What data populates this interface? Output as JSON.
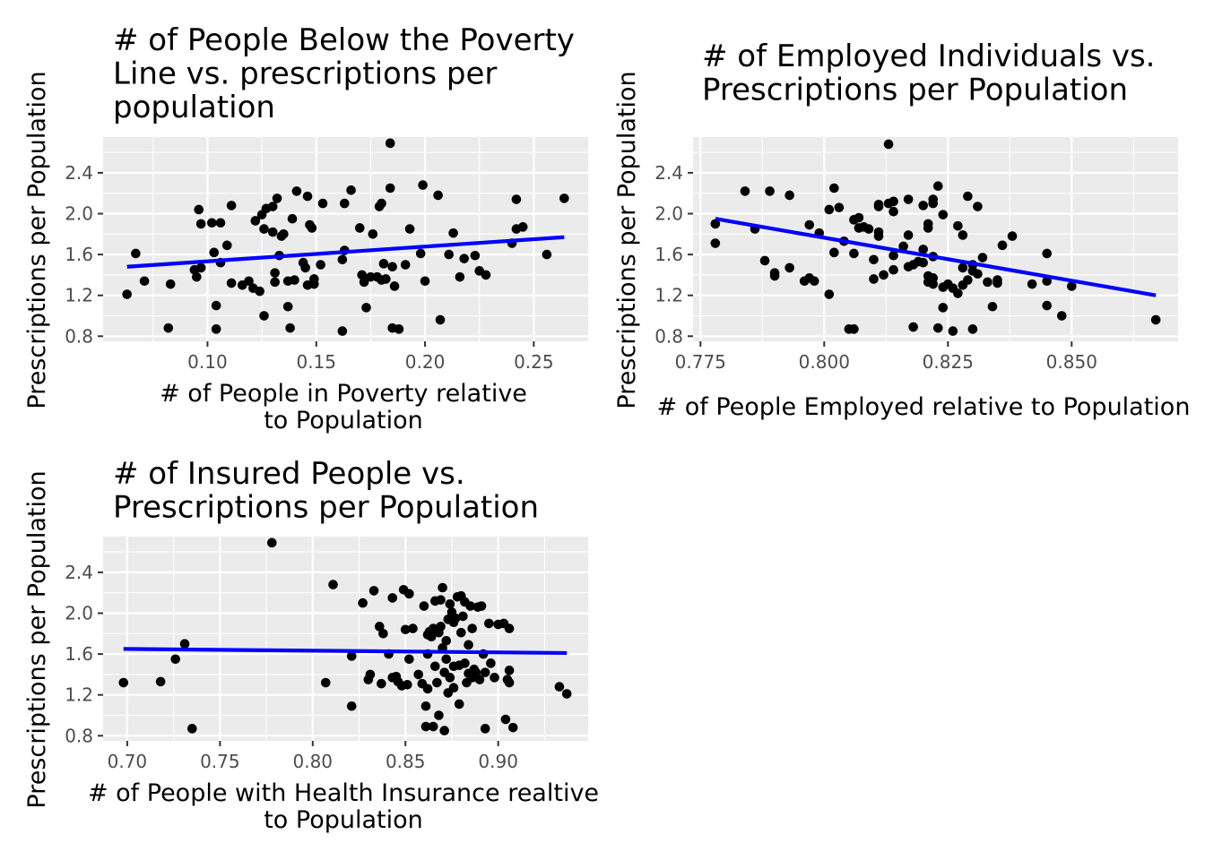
{
  "chart_data": [
    {
      "type": "scatter",
      "title": "# of People Below the Poverty Line vs. prescriptions per population",
      "title_lines": [
        "# of People Below the Poverty",
        "Line vs. prescriptions per",
        "population"
      ],
      "xlabel": "# of People in Poverty relative to Population",
      "xlabel_lines": [
        "# of People in Poverty relative",
        "to Population"
      ],
      "ylabel": "Prescriptions per Population",
      "xlim": [
        0.052,
        0.275
      ],
      "ylim": [
        0.75,
        2.75
      ],
      "xticks": [
        0.1,
        0.15,
        0.2,
        0.25
      ],
      "xtick_labels": [
        "0.10",
        "0.15",
        "0.20",
        "0.25"
      ],
      "yticks": [
        0.8,
        1.2,
        1.6,
        2.0,
        2.4
      ],
      "ytick_labels": [
        "0.8",
        "1.2",
        "1.6",
        "2.0",
        "2.4"
      ],
      "grid": true,
      "fit_line": {
        "x": [
          0.063,
          0.264
        ],
        "y": [
          1.48,
          1.77
        ],
        "color": "#0000FF"
      },
      "points": [
        [
          0.063,
          1.21
        ],
        [
          0.067,
          1.61
        ],
        [
          0.071,
          1.34
        ],
        [
          0.082,
          0.88
        ],
        [
          0.083,
          1.31
        ],
        [
          0.094,
          1.45
        ],
        [
          0.095,
          1.38
        ],
        [
          0.096,
          2.04
        ],
        [
          0.097,
          1.9
        ],
        [
          0.097,
          1.47
        ],
        [
          0.102,
          1.91
        ],
        [
          0.103,
          1.62
        ],
        [
          0.104,
          0.87
        ],
        [
          0.104,
          1.1
        ],
        [
          0.106,
          1.52
        ],
        [
          0.106,
          1.91
        ],
        [
          0.109,
          1.69
        ],
        [
          0.111,
          1.32
        ],
        [
          0.111,
          2.08
        ],
        [
          0.116,
          1.3
        ],
        [
          0.119,
          1.34
        ],
        [
          0.121,
          1.27
        ],
        [
          0.122,
          1.93
        ],
        [
          0.124,
          1.24
        ],
        [
          0.125,
          1.99
        ],
        [
          0.126,
          1.0
        ],
        [
          0.126,
          1.85
        ],
        [
          0.127,
          2.05
        ],
        [
          0.13,
          1.82
        ],
        [
          0.13,
          2.07
        ],
        [
          0.131,
          1.42
        ],
        [
          0.131,
          1.33
        ],
        [
          0.133,
          1.59
        ],
        [
          0.132,
          2.15
        ],
        [
          0.134,
          1.78
        ],
        [
          0.135,
          1.8
        ],
        [
          0.137,
          1.34
        ],
        [
          0.137,
          1.09
        ],
        [
          0.138,
          0.88
        ],
        [
          0.139,
          1.95
        ],
        [
          0.14,
          1.35
        ],
        [
          0.141,
          2.22
        ],
        [
          0.144,
          1.52
        ],
        [
          0.145,
          1.47
        ],
        [
          0.146,
          2.17
        ],
        [
          0.146,
          1.3
        ],
        [
          0.147,
          1.89
        ],
        [
          0.148,
          1.86
        ],
        [
          0.149,
          1.36
        ],
        [
          0.149,
          1.31
        ],
        [
          0.152,
          1.5
        ],
        [
          0.153,
          2.1
        ],
        [
          0.162,
          0.85
        ],
        [
          0.162,
          1.55
        ],
        [
          0.163,
          1.64
        ],
        [
          0.163,
          2.1
        ],
        [
          0.166,
          2.23
        ],
        [
          0.17,
          1.86
        ],
        [
          0.171,
          1.4
        ],
        [
          0.172,
          1.33
        ],
        [
          0.173,
          1.08
        ],
        [
          0.175,
          1.38
        ],
        [
          0.176,
          1.8
        ],
        [
          0.178,
          1.38
        ],
        [
          0.179,
          2.07
        ],
        [
          0.18,
          1.35
        ],
        [
          0.18,
          2.1
        ],
        [
          0.181,
          1.51
        ],
        [
          0.182,
          1.36
        ],
        [
          0.184,
          2.69
        ],
        [
          0.184,
          2.25
        ],
        [
          0.185,
          1.48
        ],
        [
          0.185,
          0.88
        ],
        [
          0.186,
          1.29
        ],
        [
          0.188,
          0.87
        ],
        [
          0.191,
          1.5
        ],
        [
          0.193,
          1.85
        ],
        [
          0.198,
          1.61
        ],
        [
          0.199,
          2.28
        ],
        [
          0.2,
          1.34
        ],
        [
          0.206,
          2.18
        ],
        [
          0.207,
          0.96
        ],
        [
          0.211,
          1.6
        ],
        [
          0.213,
          1.81
        ],
        [
          0.216,
          1.38
        ],
        [
          0.218,
          1.56
        ],
        [
          0.223,
          1.59
        ],
        [
          0.225,
          1.44
        ],
        [
          0.228,
          1.4
        ],
        [
          0.24,
          1.71
        ],
        [
          0.242,
          2.14
        ],
        [
          0.242,
          1.85
        ],
        [
          0.245,
          1.87
        ],
        [
          0.256,
          1.6
        ],
        [
          0.264,
          2.15
        ]
      ]
    },
    {
      "type": "scatter",
      "title": "# of Employed Individuals vs. Prescriptions per Population",
      "title_lines": [
        "# of Employed Individuals vs.",
        "Prescriptions per Population"
      ],
      "xlabel": "# of People Employed relative to Population",
      "xlabel_lines": [
        "# of People Employed relative to Population"
      ],
      "ylabel": "Prescriptions per Population",
      "xlim": [
        0.7735,
        0.8715
      ],
      "ylim": [
        0.75,
        2.75
      ],
      "xticks": [
        0.775,
        0.8,
        0.825,
        0.85
      ],
      "xtick_labels": [
        "0.775",
        "0.800",
        "0.825",
        "0.850"
      ],
      "yticks": [
        0.8,
        1.2,
        1.6,
        2.0,
        2.4
      ],
      "ytick_labels": [
        "0.8",
        "1.2",
        "1.6",
        "2.0",
        "2.4"
      ],
      "grid": true,
      "fit_line": {
        "x": [
          0.778,
          0.867
        ],
        "y": [
          1.95,
          1.2
        ],
        "color": "#0000FF"
      },
      "points": [
        [
          0.778,
          1.9
        ],
        [
          0.778,
          1.71
        ],
        [
          0.784,
          2.22
        ],
        [
          0.786,
          1.85
        ],
        [
          0.788,
          1.54
        ],
        [
          0.789,
          2.22
        ],
        [
          0.79,
          1.39
        ],
        [
          0.79,
          1.42
        ],
        [
          0.793,
          1.47
        ],
        [
          0.793,
          2.18
        ],
        [
          0.796,
          1.34
        ],
        [
          0.797,
          1.89
        ],
        [
          0.797,
          1.37
        ],
        [
          0.798,
          1.34
        ],
        [
          0.799,
          1.81
        ],
        [
          0.801,
          2.04
        ],
        [
          0.801,
          1.21
        ],
        [
          0.802,
          2.25
        ],
        [
          0.802,
          1.62
        ],
        [
          0.803,
          2.06
        ],
        [
          0.804,
          1.73
        ],
        [
          0.805,
          0.87
        ],
        [
          0.806,
          0.87
        ],
        [
          0.806,
          1.61
        ],
        [
          0.806,
          1.94
        ],
        [
          0.807,
          1.96
        ],
        [
          0.807,
          1.86
        ],
        [
          0.808,
          1.87
        ],
        [
          0.809,
          1.85
        ],
        [
          0.81,
          1.36
        ],
        [
          0.81,
          1.55
        ],
        [
          0.811,
          2.09
        ],
        [
          0.811,
          1.78
        ],
        [
          0.811,
          2.07
        ],
        [
          0.811,
          1.82
        ],
        [
          0.812,
          1.4
        ],
        [
          0.813,
          2.68
        ],
        [
          0.813,
          2.1
        ],
        [
          0.814,
          1.45
        ],
        [
          0.814,
          1.59
        ],
        [
          0.814,
          2.12
        ],
        [
          0.814,
          2.02
        ],
        [
          0.816,
          1.68
        ],
        [
          0.817,
          2.14
        ],
        [
          0.817,
          1.79
        ],
        [
          0.817,
          1.48
        ],
        [
          0.818,
          0.89
        ],
        [
          0.818,
          1.5
        ],
        [
          0.819,
          1.53
        ],
        [
          0.82,
          2.08
        ],
        [
          0.82,
          1.65
        ],
        [
          0.82,
          1.52
        ],
        [
          0.821,
          1.86
        ],
        [
          0.821,
          1.9
        ],
        [
          0.821,
          1.39
        ],
        [
          0.821,
          1.33
        ],
        [
          0.822,
          2.1
        ],
        [
          0.822,
          1.58
        ],
        [
          0.822,
          1.37
        ],
        [
          0.822,
          2.14
        ],
        [
          0.822,
          1.31
        ],
        [
          0.823,
          2.27
        ],
        [
          0.823,
          0.88
        ],
        [
          0.824,
          1.99
        ],
        [
          0.824,
          1.08
        ],
        [
          0.824,
          1.28
        ],
        [
          0.825,
          1.31
        ],
        [
          0.826,
          0.85
        ],
        [
          0.826,
          1.27
        ],
        [
          0.827,
          1.22
        ],
        [
          0.827,
          1.88
        ],
        [
          0.828,
          1.79
        ],
        [
          0.828,
          1.3
        ],
        [
          0.828,
          1.47
        ],
        [
          0.829,
          2.17
        ],
        [
          0.829,
          1.35
        ],
        [
          0.83,
          1.5
        ],
        [
          0.83,
          0.87
        ],
        [
          0.83,
          1.44
        ],
        [
          0.831,
          1.41
        ],
        [
          0.831,
          2.07
        ],
        [
          0.832,
          1.57
        ],
        [
          0.834,
          1.09
        ],
        [
          0.835,
          1.35
        ],
        [
          0.835,
          1.32
        ],
        [
          0.836,
          1.69
        ],
        [
          0.838,
          1.78
        ],
        [
          0.842,
          1.31
        ],
        [
          0.845,
          1.34
        ],
        [
          0.845,
          1.1
        ],
        [
          0.845,
          1.61
        ],
        [
          0.848,
          1.0
        ],
        [
          0.85,
          1.29
        ],
        [
          0.867,
          0.96
        ],
        [
          0.833,
          1.33
        ]
      ]
    },
    {
      "type": "scatter",
      "title": "# of Insured People vs. Prescriptions per Population",
      "title_lines": [
        "# of Insured People vs.",
        "Prescriptions per Population"
      ],
      "xlabel": "# of People with Health Insurance realtive to Population",
      "xlabel_lines": [
        "# of People with Health Insurance realtive",
        "to Population"
      ],
      "ylabel": "Prescriptions per Population",
      "xlim": [
        0.687,
        0.9485
      ],
      "ylim": [
        0.75,
        2.75
      ],
      "xticks": [
        0.7,
        0.75,
        0.8,
        0.85,
        0.9
      ],
      "xtick_labels": [
        "0.70",
        "0.75",
        "0.80",
        "0.85",
        "0.90"
      ],
      "yticks": [
        0.8,
        1.2,
        1.6,
        2.0,
        2.4
      ],
      "ytick_labels": [
        "0.8",
        "1.2",
        "1.6",
        "2.0",
        "2.4"
      ],
      "grid": true,
      "fit_line": {
        "x": [
          0.698,
          0.937
        ],
        "y": [
          1.65,
          1.61
        ],
        "color": "#0000FF"
      },
      "points": [
        [
          0.698,
          1.32
        ],
        [
          0.718,
          1.33
        ],
        [
          0.726,
          1.55
        ],
        [
          0.731,
          1.7
        ],
        [
          0.735,
          0.87
        ],
        [
          0.778,
          2.69
        ],
        [
          0.807,
          1.32
        ],
        [
          0.811,
          2.28
        ],
        [
          0.821,
          1.09
        ],
        [
          0.821,
          1.58
        ],
        [
          0.827,
          2.1
        ],
        [
          0.83,
          1.35
        ],
        [
          0.831,
          1.4
        ],
        [
          0.833,
          2.22
        ],
        [
          0.836,
          1.87
        ],
        [
          0.837,
          1.31
        ],
        [
          0.838,
          1.8
        ],
        [
          0.841,
          1.6
        ],
        [
          0.843,
          2.15
        ],
        [
          0.843,
          1.37
        ],
        [
          0.845,
          1.38
        ],
        [
          0.846,
          1.33
        ],
        [
          0.848,
          1.29
        ],
        [
          0.849,
          2.23
        ],
        [
          0.85,
          1.84
        ],
        [
          0.851,
          1.3
        ],
        [
          0.852,
          2.19
        ],
        [
          0.852,
          1.55
        ],
        [
          0.854,
          1.85
        ],
        [
          0.857,
          1.4
        ],
        [
          0.859,
          1.31
        ],
        [
          0.86,
          2.07
        ],
        [
          0.861,
          1.09
        ],
        [
          0.861,
          0.89
        ],
        [
          0.862,
          1.79
        ],
        [
          0.862,
          1.6
        ],
        [
          0.862,
          1.26
        ],
        [
          0.863,
          1.82
        ],
        [
          0.864,
          1.77
        ],
        [
          0.865,
          0.89
        ],
        [
          0.865,
          1.85
        ],
        [
          0.866,
          1.48
        ],
        [
          0.866,
          2.12
        ],
        [
          0.867,
          1.32
        ],
        [
          0.868,
          1.0
        ],
        [
          0.868,
          1.81
        ],
        [
          0.869,
          2.13
        ],
        [
          0.869,
          1.87
        ],
        [
          0.87,
          2.25
        ],
        [
          0.87,
          1.66
        ],
        [
          0.871,
          1.42
        ],
        [
          0.871,
          0.85
        ],
        [
          0.872,
          1.73
        ],
        [
          0.872,
          1.55
        ],
        [
          0.873,
          1.94
        ],
        [
          0.873,
          1.22
        ],
        [
          0.874,
          1.37
        ],
        [
          0.874,
          2.09
        ],
        [
          0.875,
          2.01
        ],
        [
          0.876,
          1.91
        ],
        [
          0.876,
          1.48
        ],
        [
          0.876,
          1.27
        ],
        [
          0.877,
          1.95
        ],
        [
          0.878,
          2.16
        ],
        [
          0.879,
          1.49
        ],
        [
          0.879,
          1.11
        ],
        [
          0.88,
          1.81
        ],
        [
          0.88,
          2.17
        ],
        [
          0.881,
          1.97
        ],
        [
          0.882,
          1.51
        ],
        [
          0.882,
          2.11
        ],
        [
          0.883,
          1.32
        ],
        [
          0.884,
          1.69
        ],
        [
          0.884,
          1.41
        ],
        [
          0.885,
          2.07
        ],
        [
          0.886,
          1.85
        ],
        [
          0.886,
          1.37
        ],
        [
          0.887,
          1.45
        ],
        [
          0.888,
          1.42
        ],
        [
          0.889,
          2.06
        ],
        [
          0.89,
          1.35
        ],
        [
          0.891,
          2.07
        ],
        [
          0.892,
          1.6
        ],
        [
          0.893,
          1.42
        ],
        [
          0.893,
          0.87
        ],
        [
          0.895,
          1.9
        ],
        [
          0.896,
          1.51
        ],
        [
          0.898,
          1.37
        ],
        [
          0.9,
          1.89
        ],
        [
          0.903,
          1.9
        ],
        [
          0.904,
          0.96
        ],
        [
          0.905,
          1.35
        ],
        [
          0.906,
          1.85
        ],
        [
          0.906,
          1.32
        ],
        [
          0.906,
          1.44
        ],
        [
          0.908,
          0.88
        ],
        [
          0.933,
          1.28
        ],
        [
          0.937,
          1.21
        ]
      ]
    }
  ]
}
